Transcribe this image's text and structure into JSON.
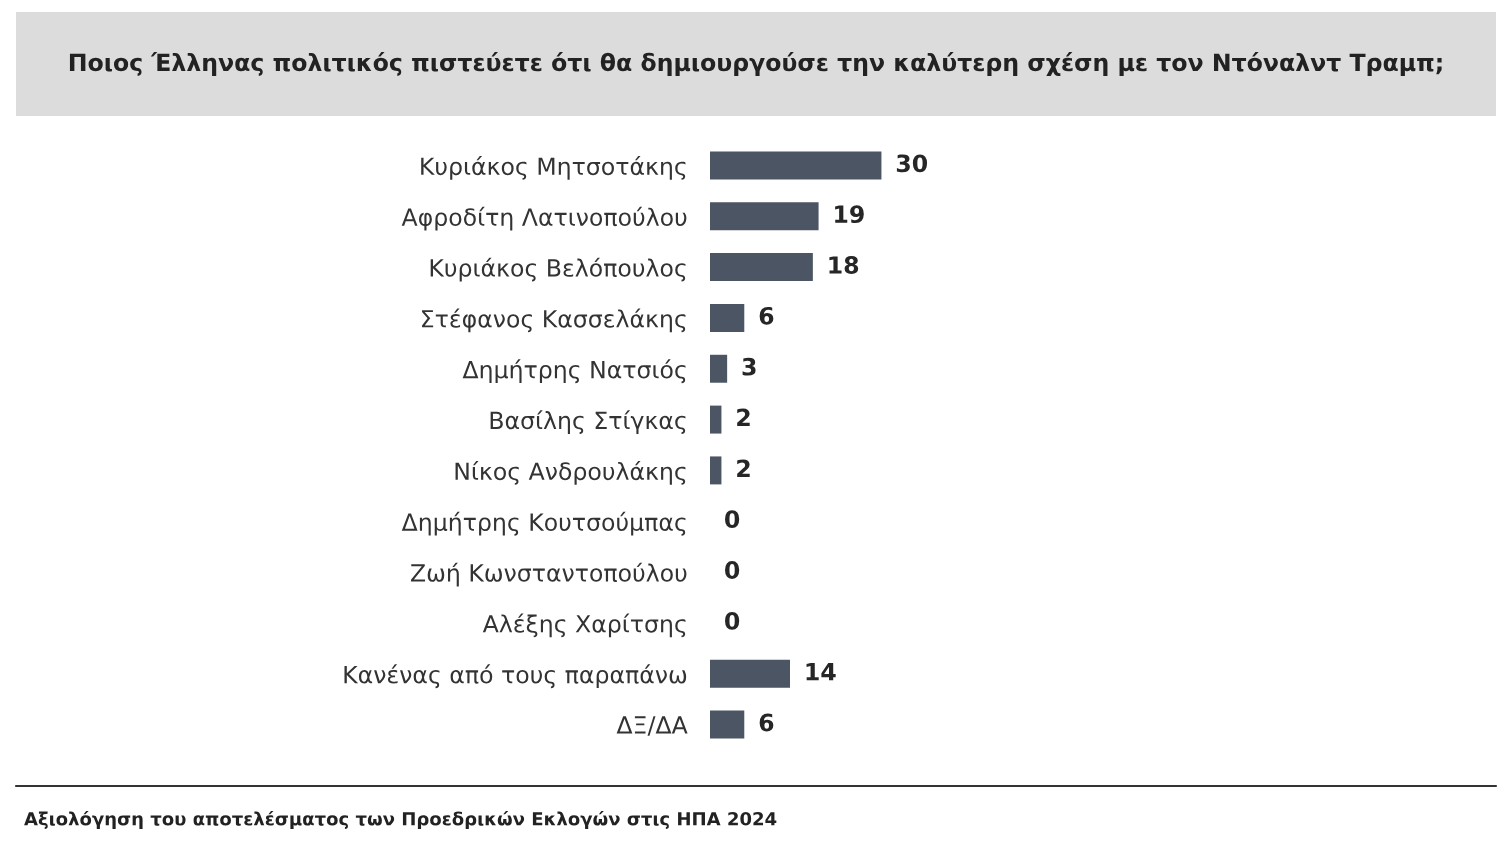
{
  "chart_data": {
    "type": "bar",
    "orientation": "horizontal",
    "title": "Ποιος Έλληνας πολιτικός πιστεύετε ότι θα δημιουργούσε την καλύτερη σχέση με τον Ντόναλντ Τραμπ;",
    "categories": [
      "Κυριάκος Μητσοτάκης",
      "Αφροδίτη Λατινοπούλου",
      "Κυριάκος Βελόπουλος",
      "Στέφανος Κασσελάκης",
      "Δημήτρης Νατσιός",
      "Βασίλης Στίγκας",
      "Νίκος Ανδρουλάκης",
      "Δημήτρης Κουτσούμπας",
      "Ζωή Κωνσταντοπούλου",
      "Αλέξης Χαρίτσης",
      "Κανένας από τους παραπάνω",
      "ΔΞ/ΔΑ"
    ],
    "values": [
      30,
      19,
      18,
      6,
      3,
      2,
      2,
      0,
      0,
      0,
      14,
      6
    ],
    "color": "#4b5563",
    "data_labels": true,
    "annotations": [
      "Αξιολόγηση του αποτελέσματος των Προεδρικών Εκλογών στις ΗΠΑ 2024"
    ]
  }
}
